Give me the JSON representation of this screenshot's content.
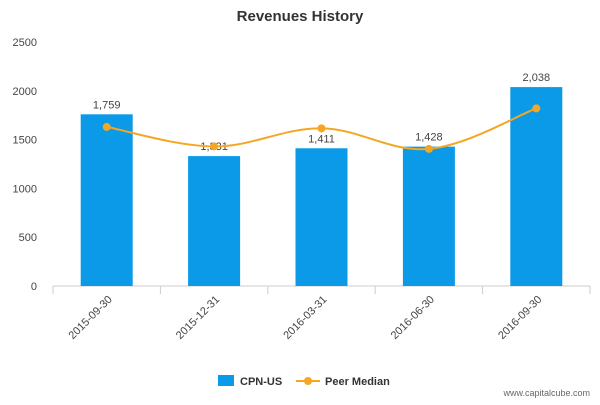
{
  "chart_data": {
    "type": "bar",
    "title": "Revenues History",
    "categories": [
      "2015-09-30",
      "2015-12-31",
      "2016-03-31",
      "2016-06-30",
      "2016-09-30"
    ],
    "ylim": [
      0,
      2500
    ],
    "yticks": [
      0,
      500,
      1000,
      1500,
      2000,
      2500
    ],
    "series": [
      {
        "name": "CPN-US",
        "type": "bar",
        "values": [
          1759,
          1331,
          1411,
          1428,
          2038
        ],
        "labels": [
          "1,759",
          "1,331",
          "1,411",
          "1,428",
          "2,038"
        ],
        "color": "#0a9ae8"
      },
      {
        "name": "Peer Median",
        "type": "line",
        "values": [
          1630,
          1430,
          1615,
          1405,
          1820
        ],
        "color": "#f5a623"
      }
    ],
    "grid": false,
    "legend_position": "bottom-center"
  },
  "credit": "www.capitalcube.com"
}
